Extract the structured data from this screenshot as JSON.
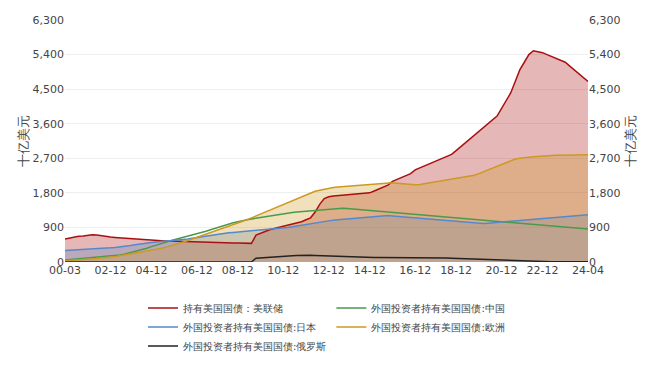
{
  "chart_data": {
    "type": "line",
    "y_label": "十亿美元",
    "y2_label": "十亿美元",
    "categories": [
      "00-03",
      null,
      null,
      null,
      null,
      null,
      null,
      null,
      null,
      null,
      "02-12",
      null,
      null,
      null,
      null,
      null,
      null,
      null,
      null,
      "04-12",
      null,
      null,
      null,
      null,
      null,
      null,
      null,
      null,
      null,
      "06-12",
      null,
      null,
      null,
      null,
      null,
      null,
      null,
      null,
      "08-12",
      null,
      null,
      null,
      null,
      null,
      null,
      null,
      null,
      null,
      "10-12",
      null,
      null,
      null,
      null,
      null,
      null,
      null,
      null,
      null,
      "12-12",
      null,
      null,
      null,
      null,
      null,
      null,
      null,
      null,
      "14-12",
      null,
      null,
      null,
      null,
      null,
      null,
      null,
      null,
      null,
      "16-12",
      null,
      null,
      null,
      null,
      null,
      null,
      null,
      null,
      "18-12",
      null,
      null,
      null,
      null,
      null,
      null,
      null,
      null,
      null,
      "20-12",
      null,
      null,
      null,
      null,
      null,
      null,
      null,
      null,
      "22-12",
      null,
      null,
      null,
      null,
      null,
      null,
      null,
      null,
      null,
      "24-04"
    ],
    "series": [
      {
        "name": "持有美国国债：美联储",
        "color": "#aa1010",
        "type": "area",
        "values": [
          600,
          630,
          650,
          670,
          680,
          700,
          710,
          700,
          680,
          660,
          650,
          640,
          630,
          620,
          610,
          600,
          590,
          580,
          570,
          560,
          555,
          550,
          548,
          545,
          540,
          538,
          535,
          532,
          530,
          528,
          525,
          520,
          515,
          510,
          505,
          500,
          498,
          495,
          493,
          490,
          488,
          485,
          700,
          750,
          800,
          840,
          870,
          900,
          920,
          950,
          980,
          1020,
          1050,
          1100,
          1150,
          1300,
          1500,
          1650,
          1700,
          1720,
          1730,
          1740,
          1750,
          1760,
          1770,
          1780,
          1790,
          1800,
          1850,
          1900,
          1950,
          2000,
          2100,
          2150,
          2200,
          2250,
          2300,
          2400,
          2450,
          2500,
          2550,
          2600,
          2650,
          2700,
          2750,
          2800,
          2900,
          3000,
          3100,
          3200,
          3300,
          3400,
          3500,
          3600,
          3700,
          3800,
          4000,
          4200,
          4400,
          4700,
          5000,
          5200,
          5400,
          5500,
          5480,
          5450,
          5400,
          5350,
          5300,
          5250,
          5200,
          5100,
          5000,
          4900,
          4800,
          4700
        ]
      },
      {
        "name": "外国投资者持有美国国债:中国",
        "color": "#4a9a4a",
        "type": "line",
        "values": [
          50,
          60,
          70,
          80,
          90,
          100,
          110,
          120,
          130,
          140,
          150,
          160,
          180,
          200,
          230,
          260,
          290,
          320,
          360,
          400,
          440,
          480,
          510,
          540,
          580,
          610,
          640,
          670,
          700,
          730,
          760,
          800,
          840,
          880,
          920,
          960,
          990,
          1020,
          1050,
          1080,
          1100,
          1120,
          1140,
          1160,
          1180,
          1200,
          1220,
          1240,
          1260,
          1280,
          1290,
          1300,
          1310,
          1320,
          1330,
          1340,
          1350,
          1360,
          1370,
          1380,
          1390,
          1400,
          1390,
          1380,
          1370,
          1360,
          1350,
          1340,
          1330,
          1320,
          1310,
          1300,
          1290,
          1280,
          1270,
          1260,
          1250,
          1240,
          1230,
          1220,
          1210,
          1200,
          1190,
          1180,
          1170,
          1160,
          1150,
          1140,
          1130,
          1120,
          1110,
          1100,
          1090,
          1080,
          1070,
          1060,
          1050,
          1040,
          1030,
          1020,
          1010,
          1000,
          990,
          980,
          970,
          960,
          950,
          940,
          930,
          920,
          910,
          900,
          890,
          880,
          870,
          860
        ]
      },
      {
        "name": "外国投资者持有美国国债:日本",
        "color": "#5588cc",
        "type": "area",
        "values": [
          300,
          305,
          310,
          315,
          320,
          325,
          330,
          340,
          350,
          360,
          370,
          380,
          390,
          400,
          420,
          440,
          460,
          480,
          500,
          510,
          520,
          530,
          540,
          550,
          560,
          570,
          580,
          600,
          620,
          640,
          660,
          680,
          700,
          720,
          740,
          750,
          760,
          770,
          780,
          790,
          800,
          810,
          820,
          830,
          840,
          850,
          860,
          870,
          880,
          900,
          920,
          940,
          960,
          980,
          1000,
          1020,
          1040,
          1060,
          1080,
          1090,
          1100,
          1110,
          1120,
          1130,
          1140,
          1150,
          1160,
          1170,
          1180,
          1190,
          1200,
          1210,
          1200,
          1190,
          1180,
          1170,
          1160,
          1150,
          1140,
          1130,
          1120,
          1110,
          1100,
          1090,
          1080,
          1070,
          1060,
          1050,
          1040,
          1030,
          1020,
          1010,
          1000,
          1010,
          1020,
          1030,
          1040,
          1050,
          1060,
          1070,
          1080,
          1090,
          1100,
          1110,
          1120,
          1130,
          1140,
          1150,
          1160,
          1170,
          1180,
          1190,
          1200,
          1210,
          1220,
          1230
        ]
      },
      {
        "name": "外国投资者持有美国国债:欧洲",
        "color": "#cc9922",
        "type": "area",
        "values": [
          30,
          35,
          40,
          50,
          60,
          70,
          80,
          90,
          100,
          110,
          120,
          140,
          160,
          180,
          200,
          220,
          240,
          260,
          280,
          300,
          320,
          350,
          380,
          410,
          440,
          480,
          520,
          560,
          600,
          640,
          680,
          720,
          760,
          800,
          840,
          880,
          920,
          960,
          1000,
          1050,
          1100,
          1150,
          1200,
          1250,
          1300,
          1350,
          1400,
          1450,
          1500,
          1550,
          1600,
          1650,
          1700,
          1750,
          1800,
          1840,
          1870,
          1900,
          1920,
          1940,
          1950,
          1960,
          1970,
          1980,
          1990,
          2000,
          2010,
          2020,
          2030,
          2040,
          2050,
          2060,
          2060,
          2050,
          2040,
          2030,
          2020,
          2010,
          2020,
          2040,
          2060,
          2080,
          2100,
          2120,
          2140,
          2160,
          2180,
          2200,
          2220,
          2240,
          2260,
          2300,
          2350,
          2400,
          2450,
          2500,
          2550,
          2600,
          2650,
          2680,
          2700,
          2720,
          2730,
          2740,
          2750,
          2760,
          2770,
          2780,
          2780,
          2780,
          2780,
          2780,
          2780,
          2780,
          2780,
          2790
        ]
      },
      {
        "name": "外国投资者持有美国国债:俄罗斯",
        "color": "#222222",
        "type": "line",
        "values": [
          0,
          0,
          0,
          0,
          0,
          0,
          0,
          0,
          0,
          0,
          0,
          0,
          0,
          0,
          0,
          0,
          0,
          0,
          0,
          0,
          0,
          0,
          0,
          0,
          0,
          0,
          0,
          0,
          0,
          0,
          0,
          0,
          0,
          0,
          0,
          0,
          0,
          0,
          0,
          0,
          0,
          0,
          100,
          110,
          120,
          130,
          140,
          150,
          155,
          160,
          165,
          170,
          175,
          180,
          175,
          170,
          165,
          160,
          155,
          150,
          145,
          140,
          135,
          130,
          125,
          120,
          120,
          120,
          120,
          120,
          120,
          120,
          120,
          120,
          120,
          120,
          120,
          120,
          120,
          120,
          120,
          120,
          115,
          110,
          105,
          100,
          95,
          90,
          85,
          80,
          75,
          70,
          65,
          60,
          55,
          50,
          45,
          40,
          35,
          30,
          25,
          20,
          15,
          10,
          5,
          5,
          5,
          5,
          5,
          5,
          5,
          5,
          5,
          5,
          5,
          5
        ]
      }
    ],
    "ylim": [
      0,
      6300
    ],
    "yticks": [
      0,
      900,
      {
        "value": 1800,
        "label": "1,800"
      },
      {
        "value": 2700,
        "label": "2,700"
      },
      {
        "value": 3600,
        "label": "3,600"
      },
      {
        "value": 4500,
        "label": "4,500"
      },
      {
        "value": 5400,
        "label": "5,400"
      },
      {
        "value": 6300,
        "label": "6,300"
      }
    ],
    "y2lim": [
      0,
      6300
    ],
    "y2ticks": [
      0,
      900,
      {
        "value": 1800,
        "label": "1,800"
      },
      {
        "value": 2700,
        "label": "2,700"
      },
      {
        "value": 3600,
        "label": "3,600"
      },
      {
        "value": 4500,
        "label": "4,500"
      },
      {
        "value": 5400,
        "label": "5,400"
      },
      {
        "value": 6300,
        "label": "6,300"
      }
    ],
    "grid": true,
    "legend": "bottom"
  }
}
